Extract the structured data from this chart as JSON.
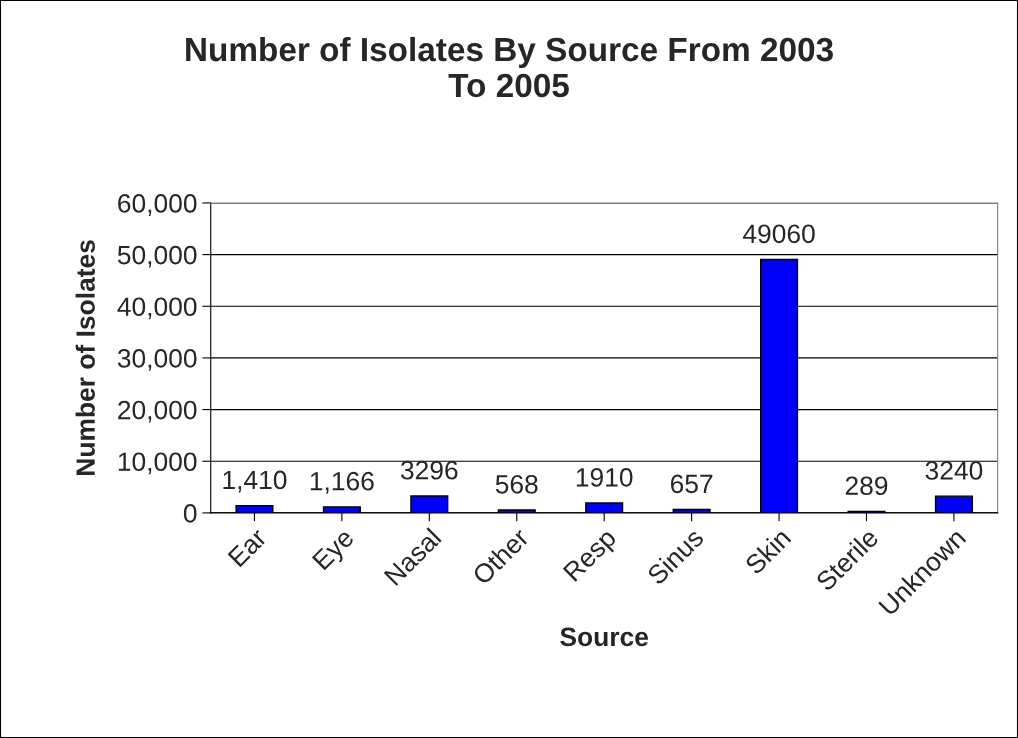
{
  "chart_data": {
    "type": "bar",
    "title": "Number of Isolates By Source From 2003\nTo 2005",
    "xlabel": "Source",
    "ylabel": "Number of Isolates",
    "categories": [
      "Ear",
      "Eye",
      "Nasal",
      "Other",
      "Resp",
      "Sinus",
      "Skin",
      "Sterile",
      "Unknown"
    ],
    "values": [
      1410,
      1166,
      3296,
      568,
      1910,
      657,
      49060,
      289,
      3240
    ],
    "value_labels": [
      "1,410",
      "1,166",
      "3296",
      "568",
      "1910",
      "657",
      "49060",
      "289",
      "3240"
    ],
    "color": "#0000ff",
    "ylim": [
      0,
      60000
    ],
    "yticks": [
      {
        "value": 0,
        "label": "0"
      },
      {
        "value": 10000,
        "label": "10,000"
      },
      {
        "value": 20000,
        "label": "20,000"
      },
      {
        "value": 30000,
        "label": "30,000"
      },
      {
        "value": 40000,
        "label": "40,000"
      },
      {
        "value": 50000,
        "label": "50,000"
      },
      {
        "value": 60000,
        "label": "60,000"
      }
    ],
    "grid": "y",
    "legend": false
  }
}
